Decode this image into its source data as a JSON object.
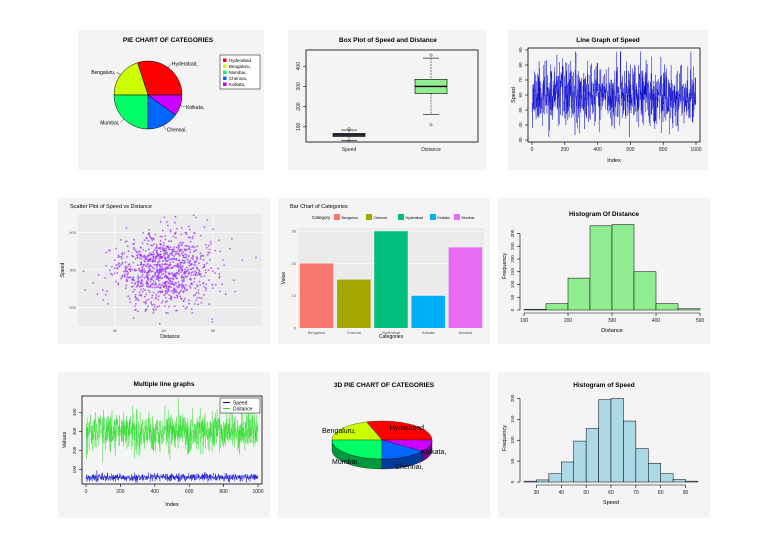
{
  "chart_data": [
    {
      "id": "pie",
      "type": "pie",
      "title": "PIE CHART OF CATEGORIES",
      "labels": [
        "Hyderabad,",
        "Bengaluru,",
        "Mumbai,",
        "Chennai,",
        "Kolkata,"
      ],
      "values": [
        30,
        20,
        25,
        15,
        10
      ],
      "colors": [
        "#ff0000",
        "#ccff00",
        "#00ff66",
        "#0066ff",
        "#cc00ff"
      ],
      "legend_position": "top-right"
    },
    {
      "id": "box",
      "type": "box",
      "title": "Box Plot of Speed and Distance",
      "categories": [
        "Speed",
        "Distance"
      ],
      "stats": [
        {
          "min": 33,
          "q1": 52,
          "median": 60,
          "q3": 68,
          "max": 84,
          "outliers": [
            90,
            30
          ]
        },
        {
          "min": 160,
          "q1": 265,
          "median": 300,
          "q3": 335,
          "max": 440,
          "outliers": [
            455,
            110
          ]
        }
      ],
      "colors": [
        "#708090",
        "#90ee90"
      ],
      "ylim": [
        25,
        480
      ],
      "yticks": [
        100,
        200,
        300,
        400
      ]
    },
    {
      "id": "line",
      "type": "line",
      "title": "Line Graph of Speed",
      "xlabel": "Index",
      "ylabel": "Speed",
      "xlim": [
        0,
        1000
      ],
      "ylim": [
        30,
        90
      ],
      "xticks": [
        0,
        200,
        400,
        600,
        800,
        1000
      ],
      "yticks": [
        30,
        40,
        50,
        60,
        70,
        80,
        90
      ],
      "color": "#0000cc",
      "n": 1000,
      "mean": 60,
      "sd": 10
    },
    {
      "id": "scatter",
      "type": "scatter",
      "title": "Scatter Plot of Speed vs Distance",
      "xlabel": "Distance",
      "ylabel": "Speed",
      "xticks": [
        40,
        60,
        80
      ],
      "yticks": [
        200,
        300,
        400
      ],
      "xlim": [
        25,
        100
      ],
      "ylim": [
        150,
        450
      ],
      "color": "#9b30ff",
      "n": 1000,
      "mean_x": 60,
      "sd_x": 10,
      "mean_y": 300,
      "sd_y": 50
    },
    {
      "id": "bar",
      "type": "bar",
      "title": "Bar Chart of Categories",
      "legend_title": "Category",
      "categories": [
        "Bengaluru",
        "Chennai",
        "Hyderabad",
        "Kolkata",
        "Mumbai"
      ],
      "values": [
        20,
        15,
        30,
        10,
        25
      ],
      "colors": [
        "#f8766d",
        "#a3a500",
        "#00bf7d",
        "#00b0f6",
        "#e76bf3"
      ],
      "xlabel": "Categories",
      "ylabel": "Value",
      "ylim": [
        0,
        31
      ],
      "yticks": [
        0,
        10,
        20,
        30
      ],
      "legend_position": "top"
    },
    {
      "id": "histd",
      "type": "histogram",
      "title": "Histogram Of Distance",
      "xlabel": "Distance",
      "ylabel": "Frequency",
      "bins": [
        100,
        150,
        200,
        250,
        300,
        350,
        400,
        450,
        500
      ],
      "counts": [
        3,
        25,
        125,
        330,
        335,
        150,
        25,
        5
      ],
      "color": "#90ee90",
      "xticks": [
        100,
        200,
        300,
        400,
        500
      ],
      "yticks": [
        0,
        50,
        100,
        150,
        200,
        250,
        300
      ],
      "ylim": [
        0,
        345
      ]
    },
    {
      "id": "multi",
      "type": "line",
      "title": "Multiple line graphs",
      "xlabel": "Index",
      "ylabel": "Values",
      "series": [
        {
          "name": "Speed",
          "color": "#0000cc",
          "mean": 60,
          "sd": 10
        },
        {
          "name": "Distance",
          "color": "#22dd22",
          "mean": 300,
          "sd": 50
        }
      ],
      "xlim": [
        0,
        1000
      ],
      "ylim": [
        30,
        480
      ],
      "xticks": [
        0,
        200,
        400,
        600,
        800,
        1000
      ],
      "yticks": [
        100,
        200,
        300,
        400
      ],
      "legend_position": "top-right"
    },
    {
      "id": "pie3d",
      "type": "pie",
      "title": "3D PIE CHART OF CATEGORIES",
      "labels": [
        "Hyderabad,",
        "Bengaluru,",
        "Mumbai,",
        "Chennai,",
        "Kolkata,"
      ],
      "values": [
        30,
        20,
        25,
        15,
        10
      ],
      "colors": [
        "#ff0000",
        "#ccff00",
        "#00ff66",
        "#0066ff",
        "#cc00ff"
      ]
    },
    {
      "id": "hists",
      "type": "histogram",
      "title": "Histogram of Speed",
      "xlabel": "Speed",
      "ylabel": "Frequency",
      "bins": [
        25,
        30,
        35,
        40,
        45,
        50,
        55,
        60,
        65,
        70,
        75,
        80,
        85,
        90,
        95
      ],
      "counts": [
        2,
        5,
        20,
        48,
        98,
        128,
        197,
        200,
        146,
        80,
        45,
        20,
        6,
        2
      ],
      "color": "#add8e6",
      "xticks": [
        30,
        40,
        50,
        60,
        70,
        80,
        90
      ],
      "yticks": [
        0,
        50,
        100,
        150,
        200
      ],
      "ylim": [
        0,
        206
      ]
    }
  ]
}
